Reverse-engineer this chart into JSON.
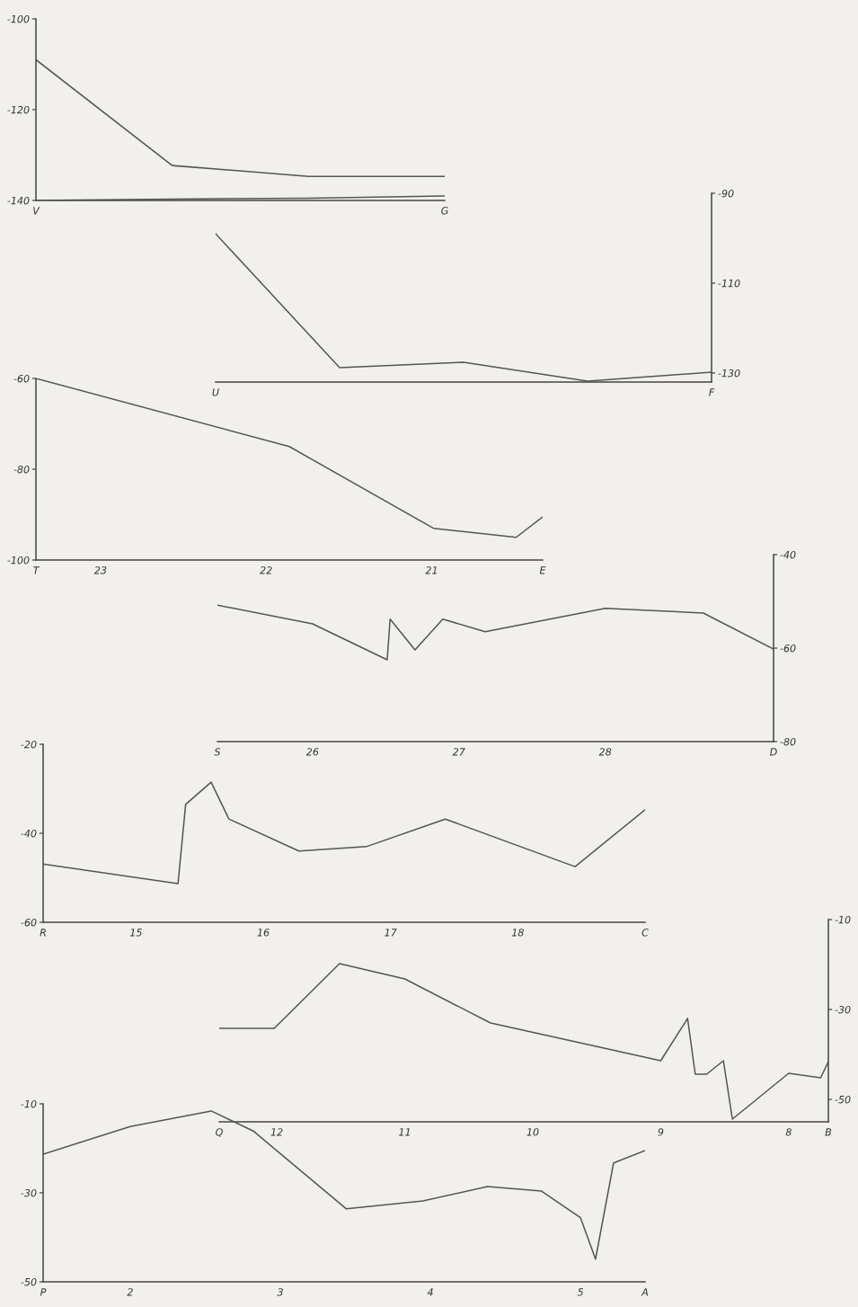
{
  "chart_data": [
    {
      "type": "line",
      "categories": [
        "V",
        null,
        null,
        "G"
      ],
      "ylim": [
        -140,
        -100
      ],
      "yticks": [
        -100,
        -120,
        -140
      ],
      "series": [
        {
          "color": "#555555",
          "values": [
            -109,
            -132.3,
            -134.7,
            -134.7
          ]
        },
        {
          "color": "#555555",
          "values": [
            -140,
            -139.7,
            -139.5,
            -139
          ]
        }
      ]
    },
    {
      "type": "line",
      "categories": [
        "U",
        null,
        null,
        null,
        "F"
      ],
      "ylim": [
        -132,
        -90
      ],
      "yticks": [
        -90,
        -110,
        -130
      ],
      "series": [
        {
          "color": "#555555",
          "values": [
            -99,
            -128.8,
            -127.6,
            -131.8,
            -129.8
          ]
        }
      ]
    },
    {
      "type": "line",
      "xlim": [
        23.39,
        20.33
      ],
      "xticks": [
        {
          "value": 23.39,
          "label": "T"
        },
        23,
        22,
        21,
        {
          "value": 20.33,
          "label": "E"
        }
      ],
      "ylim": [
        -100,
        -60
      ],
      "yticks": [
        -60,
        -80,
        -100
      ],
      "series": [
        {
          "color": "#555555",
          "x": [
            23.39,
            21.86,
            20.99,
            20.49,
            20.33
          ],
          "values": [
            -60,
            -75,
            -93,
            -95,
            -90.5
          ]
        }
      ]
    },
    {
      "type": "line",
      "xlim": [
        25.35,
        29.15
      ],
      "xticks": [
        {
          "value": 25.35,
          "label": "S"
        },
        26,
        27,
        28,
        {
          "value": 29.15,
          "label": "D"
        }
      ],
      "ylim": [
        -80,
        -40
      ],
      "yticks": [
        -40,
        -60,
        -80
      ],
      "series": [
        {
          "color": "#555555",
          "x": [
            25.35,
            26.0,
            26.51,
            26.53,
            26.7,
            26.89,
            27.18,
            28.0,
            28.67,
            29.15
          ],
          "values": [
            -50.8,
            -54.8,
            -62.5,
            -53.8,
            -60.4,
            -53.8,
            -56.5,
            -51.5,
            -52.5,
            -60.2
          ]
        }
      ]
    },
    {
      "type": "line",
      "xlim": [
        14.27,
        19.0
      ],
      "xticks": [
        {
          "value": 14.27,
          "label": "R"
        },
        15,
        16,
        17,
        18,
        {
          "value": 19.0,
          "label": "C"
        }
      ],
      "ylim": [
        -60,
        -20
      ],
      "yticks": [
        -20,
        -40,
        -60
      ],
      "series": [
        {
          "color": "#555555",
          "x": [
            14.27,
            15.33,
            15.39,
            15.59,
            15.73,
            16.28,
            16.81,
            17.43,
            18.45,
            19.0
          ],
          "values": [
            -46.9,
            -51.3,
            -33.5,
            -28.5,
            -36.8,
            -44,
            -43,
            -36.8,
            -47.5,
            -34.7
          ]
        }
      ]
    },
    {
      "type": "line",
      "xlim": [
        12.45,
        7.69
      ],
      "xticks": [
        {
          "value": 12.45,
          "label": "Q"
        },
        12,
        11,
        10,
        9,
        8,
        {
          "value": 7.69,
          "label": "B"
        }
      ],
      "ylim": [
        -55,
        -10
      ],
      "yticks": [
        -10,
        -30,
        -50
      ],
      "series": [
        {
          "color": "#555555",
          "x": [
            12.45,
            12.02,
            11.51,
            11.0,
            10.33,
            9.0,
            8.79,
            8.73,
            8.64,
            8.51,
            8.44,
            8.0,
            7.75,
            7.69
          ],
          "values": [
            -34.2,
            -34.2,
            -19.8,
            -23.2,
            -33,
            -41.4,
            -32,
            -44.4,
            -44.4,
            -41.4,
            -54.4,
            -44.2,
            -45.2,
            -41.6
          ]
        }
      ]
    },
    {
      "type": "line",
      "xlim": [
        1.42,
        5.43
      ],
      "xticks": [
        {
          "value": 1.42,
          "label": "P"
        },
        2,
        3,
        4,
        5,
        {
          "value": 5.43,
          "label": "A"
        }
      ],
      "ylim": [
        -50,
        -10
      ],
      "yticks": [
        -10,
        -30,
        -50
      ],
      "series": [
        {
          "color": "#555555",
          "x": [
            1.42,
            2.0,
            2.54,
            2.82,
            3.44,
            3.95,
            4.38,
            4.74,
            5.0,
            5.1,
            5.22,
            5.43
          ],
          "values": [
            -21.3,
            -15.1,
            -11.6,
            -16.1,
            -33.6,
            -31.8,
            -28.6,
            -29.6,
            -35.6,
            -44.9,
            -23.3,
            -20.5
          ]
        }
      ]
    }
  ]
}
